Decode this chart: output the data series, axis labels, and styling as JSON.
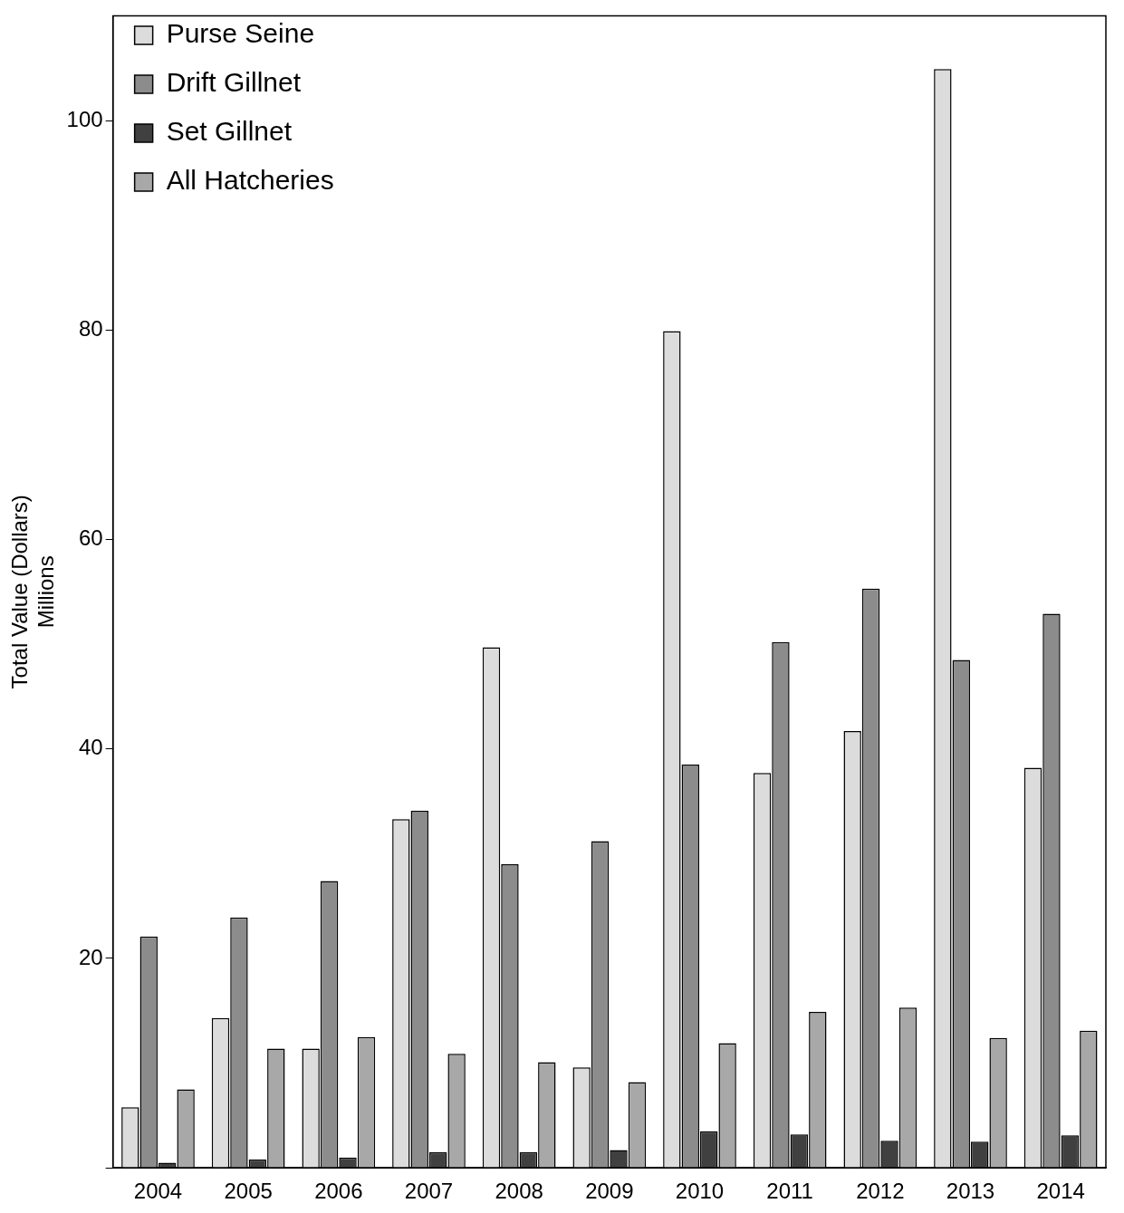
{
  "chart_data": {
    "type": "bar",
    "ylabel": "Total Value (Dollars)\nMillions",
    "categories": [
      "2004",
      "2005",
      "2006",
      "2007",
      "2008",
      "2009",
      "2010",
      "2011",
      "2012",
      "2013",
      "2014"
    ],
    "series": [
      {
        "name": "Purse Seine",
        "color": "#dcdcdc",
        "values": [
          5.8,
          14.3,
          11.4,
          33.3,
          49.7,
          9.6,
          79.9,
          37.7,
          41.7,
          104.9,
          38.2
        ]
      },
      {
        "name": "Drift Gillnet",
        "color": "#8c8c8c",
        "values": [
          22.1,
          23.9,
          27.4,
          34.1,
          29.0,
          31.2,
          38.5,
          50.2,
          55.3,
          48.5,
          52.9
        ]
      },
      {
        "name": "Set Gillnet",
        "color": "#404040",
        "values": [
          0.5,
          0.8,
          1.0,
          1.5,
          1.5,
          1.7,
          3.5,
          3.2,
          2.6,
          2.5,
          3.1
        ]
      },
      {
        "name": "All Hatcheries",
        "color": "#a8a8a8",
        "values": [
          7.5,
          11.4,
          12.5,
          10.9,
          10.1,
          8.2,
          11.9,
          14.9,
          15.3,
          12.4,
          13.1
        ]
      }
    ],
    "ylim": [
      0,
      110
    ],
    "yticks": [
      {
        "value": 0,
        "label": null
      },
      20,
      40,
      60,
      80,
      100
    ],
    "grid": false,
    "legend": "top left"
  }
}
